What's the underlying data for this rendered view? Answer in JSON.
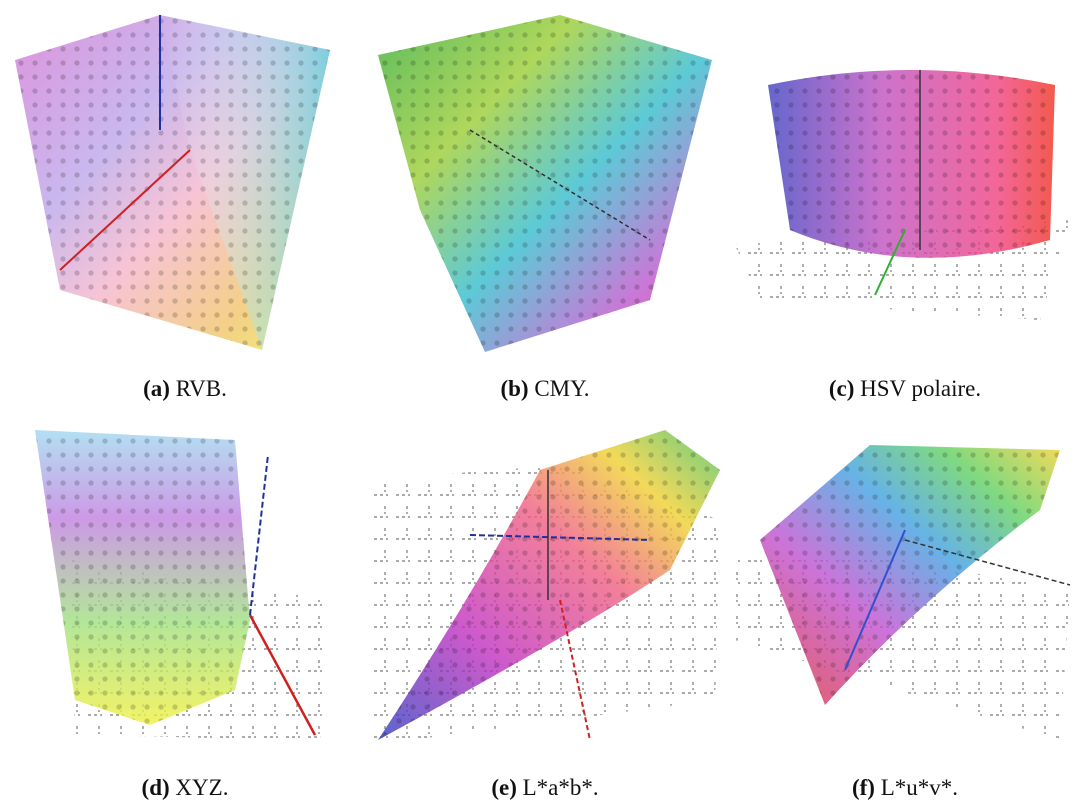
{
  "figure": {
    "panels": [
      {
        "label": "(a)",
        "caption": "RVB."
      },
      {
        "label": "(b)",
        "caption": "CMY."
      },
      {
        "label": "(c)",
        "caption": "HSV polaire."
      },
      {
        "label": "(d)",
        "caption": "XYZ."
      },
      {
        "label": "(e)",
        "caption": "L*a*b*."
      },
      {
        "label": "(f)",
        "caption": "L*u*v*."
      }
    ]
  }
}
